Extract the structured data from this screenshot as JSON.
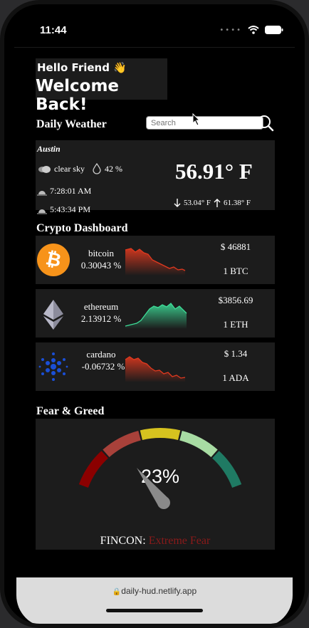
{
  "status_bar": {
    "time": "11:44"
  },
  "header": {
    "hello": "Hello Friend 👋",
    "welcome": "Welcome Back!"
  },
  "weather": {
    "section_title": "Daily Weather",
    "search_placeholder": "Search",
    "city": "Austin",
    "condition": "clear sky",
    "humidity": "42 %",
    "sunrise": "7:28:01 AM",
    "sunset": "5:43:34 PM",
    "temperature": "56.91° F",
    "low": "53.04° F",
    "high": "61.38° F"
  },
  "crypto": {
    "section_title": "Crypto Dashboard",
    "coins": [
      {
        "name": "bitcoin",
        "change": "0.30043 %",
        "price": "$ 46881",
        "unit": "1 BTC",
        "trend_color": "#e0391f"
      },
      {
        "name": "ethereum",
        "change": "2.13912 %",
        "price": "$3856.69",
        "unit": "1 ETH",
        "trend_color": "#3ddc97"
      },
      {
        "name": "cardano",
        "change": "-0.06732 %",
        "price": "$ 1.34",
        "unit": "1 ADA",
        "trend_color": "#e0391f"
      }
    ]
  },
  "fear_greed": {
    "section_title": "Fear & Greed",
    "value_text": "23%",
    "value": 23,
    "label_prefix": "FINCON:",
    "label_value": "Extreme Fear",
    "label_color": "#8b1a1a"
  },
  "browser": {
    "url": "daily-hud.netlify.app"
  },
  "colors": {
    "card_bg": "#1c1c1c",
    "gauge_segments": [
      "#8b0000",
      "#a8413a",
      "#d6c21f",
      "#a8dca3",
      "#1f7a63"
    ]
  }
}
